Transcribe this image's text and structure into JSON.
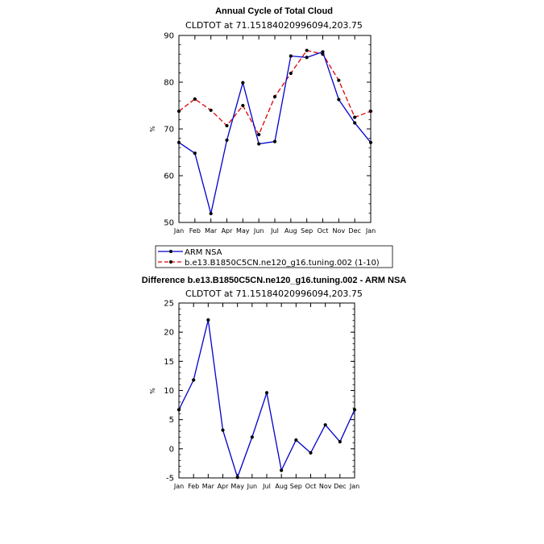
{
  "colors": {
    "obs": "#0000cc",
    "model": "#e00000",
    "marker": "#000000",
    "diff": "#0000cc"
  },
  "chart_data": [
    {
      "type": "line",
      "title": "Annual Cycle of Total Cloud",
      "subtitle": "CLDTOT at 71.15184020996094,203.75",
      "ylabel": "%",
      "xlabel": "",
      "categories": [
        "Jan",
        "Feb",
        "Mar",
        "Apr",
        "May",
        "Jun",
        "Jul",
        "Aug",
        "Sep",
        "Oct",
        "Nov",
        "Dec",
        "Jan"
      ],
      "ylim": [
        50,
        90
      ],
      "yticks": [
        "50",
        "60",
        "70",
        "80",
        "90"
      ],
      "series": [
        {
          "name": "ARM NSA",
          "style": "solid",
          "color": "#0000cc",
          "values": [
            67.1,
            64.8,
            51.9,
            67.6,
            79.9,
            66.8,
            67.3,
            85.6,
            85.3,
            86.5,
            76.3,
            71.3,
            67.1
          ]
        },
        {
          "name": "b.e13.B1850C5CN.ne120_g16.tuning.002  (1-10)",
          "style": "dashed",
          "color": "#e00000",
          "values": [
            73.8,
            76.4,
            74.0,
            70.7,
            75.0,
            68.8,
            76.9,
            81.9,
            86.8,
            86.0,
            80.4,
            72.5,
            73.8
          ]
        }
      ]
    },
    {
      "type": "line",
      "title": "Difference b.e13.B1850C5CN.ne120_g16.tuning.002 - ARM NSA",
      "subtitle": "CLDTOT at 71.15184020996094,203.75",
      "ylabel": "%",
      "xlabel": "",
      "categories": [
        "Jan",
        "Feb",
        "Mar",
        "Apr",
        "May",
        "Jun",
        "Jul",
        "Aug",
        "Sep",
        "Oct",
        "Nov",
        "Dec",
        "Jan"
      ],
      "ylim": [
        -5,
        25
      ],
      "yticks": [
        "-5",
        "0",
        "5",
        "10",
        "15",
        "20",
        "25"
      ],
      "series": [
        {
          "name": "Difference",
          "style": "solid",
          "color": "#0000cc",
          "values": [
            6.7,
            11.8,
            22.1,
            3.2,
            -4.9,
            2.0,
            9.6,
            -3.7,
            1.5,
            -0.7,
            4.1,
            1.2,
            6.7
          ]
        }
      ]
    }
  ]
}
